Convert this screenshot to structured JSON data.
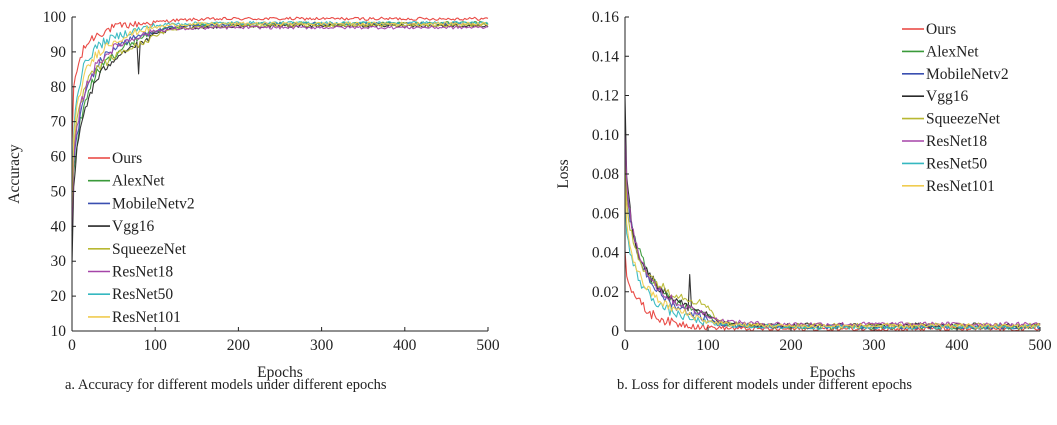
{
  "chart_data": [
    {
      "type": "line",
      "caption": "a. Accuracy for different models under different epochs",
      "xlabel": "Epochs",
      "ylabel": "Accuracy",
      "xlim": [
        0,
        500
      ],
      "ylim": [
        10,
        100
      ],
      "xticks": [
        "0",
        "100",
        "200",
        "300",
        "400",
        "500"
      ],
      "yticks": [
        "10",
        "20",
        "30",
        "40",
        "50",
        "60",
        "70",
        "80",
        "90",
        "100"
      ],
      "grid": false,
      "legend_position": "lower-left",
      "series": [
        {
          "name": "Ours",
          "color": "#e8413c",
          "x": [
            0,
            2,
            5,
            10,
            15,
            20,
            30,
            40,
            50,
            60,
            80,
            100,
            120,
            150,
            200,
            300,
            400,
            500
          ],
          "y": [
            62,
            80,
            84,
            88,
            91,
            93,
            95,
            96,
            97,
            97.5,
            98,
            98.5,
            99,
            99.3,
            99.5,
            99.5,
            99.5,
            99.5
          ]
        },
        {
          "name": "AlexNet",
          "color": "#3a9a3a",
          "x": [
            0,
            2,
            5,
            10,
            15,
            20,
            30,
            40,
            50,
            60,
            80,
            100,
            120,
            150,
            200,
            300,
            400,
            500
          ],
          "y": [
            38,
            55,
            62,
            70,
            75,
            79,
            84,
            87,
            89,
            91,
            94,
            96,
            97,
            97.8,
            98,
            98.2,
            98.2,
            98.3
          ]
        },
        {
          "name": "MobileNetv2",
          "color": "#3a4fb0",
          "x": [
            0,
            2,
            5,
            10,
            15,
            20,
            30,
            40,
            50,
            60,
            80,
            100,
            120,
            150,
            200,
            300,
            400,
            500
          ],
          "y": [
            40,
            57,
            64,
            72,
            77,
            81,
            86,
            89,
            91,
            92.5,
            94.5,
            96,
            97,
            97.5,
            97.8,
            98,
            98,
            98
          ]
        },
        {
          "name": "Vgg16",
          "color": "#2a2a2a",
          "x": [
            0,
            2,
            5,
            10,
            15,
            20,
            30,
            40,
            50,
            60,
            78,
            80,
            82,
            100,
            120,
            150,
            200,
            300,
            400,
            500
          ],
          "y": [
            28,
            50,
            60,
            68,
            73,
            77,
            82,
            85.5,
            88,
            90,
            92,
            84,
            92,
            95,
            96.5,
            97,
            97.3,
            97.5,
            97.5,
            97.5
          ]
        },
        {
          "name": "SqueezeNet",
          "color": "#b8b832",
          "x": [
            0,
            2,
            5,
            10,
            15,
            20,
            30,
            40,
            50,
            60,
            80,
            100,
            120,
            150,
            200,
            300,
            400,
            500
          ],
          "y": [
            42,
            60,
            68,
            75,
            79,
            82,
            85,
            87,
            88.5,
            90,
            92,
            94.5,
            96.5,
            97.2,
            97.5,
            97.6,
            97.6,
            97.6
          ]
        },
        {
          "name": "ResNet18",
          "color": "#a544a8",
          "x": [
            0,
            2,
            5,
            10,
            15,
            20,
            30,
            40,
            50,
            60,
            80,
            100,
            120,
            150,
            200,
            300,
            400,
            500
          ],
          "y": [
            40,
            58,
            66,
            74,
            78.5,
            82,
            86.5,
            89,
            91,
            92.5,
            94.5,
            96,
            96.5,
            96.8,
            97,
            97,
            97,
            97
          ]
        },
        {
          "name": "ResNet50",
          "color": "#35b8c0",
          "x": [
            0,
            2,
            5,
            10,
            15,
            20,
            30,
            40,
            50,
            60,
            80,
            100,
            120,
            150,
            200,
            300,
            400,
            500
          ],
          "y": [
            48,
            68,
            76,
            82,
            86,
            88.5,
            91.5,
            93,
            94,
            95,
            96.5,
            97.5,
            98,
            98.2,
            98.3,
            98.3,
            98.3,
            98.3
          ]
        },
        {
          "name": "ResNet101",
          "color": "#f0cc50",
          "x": [
            0,
            2,
            5,
            10,
            15,
            20,
            30,
            40,
            50,
            60,
            80,
            100,
            120,
            150,
            200,
            300,
            400,
            500
          ],
          "y": [
            45,
            64,
            72,
            79,
            83,
            86,
            89.5,
            91.5,
            93,
            94,
            96,
            97,
            97.7,
            98,
            98.1,
            98.1,
            98.1,
            98.1
          ]
        }
      ]
    },
    {
      "type": "line",
      "caption": "b. Loss for different models under different epochs",
      "xlabel": "Epochs",
      "ylabel": "Loss",
      "xlim": [
        0,
        500
      ],
      "ylim": [
        0,
        0.16
      ],
      "xticks": [
        "0",
        "100",
        "200",
        "300",
        "400",
        "500"
      ],
      "yticks": [
        "0",
        "0.02",
        "0.04",
        "0.06",
        "0.08",
        "0.10",
        "0.12",
        "0.14",
        "0.16"
      ],
      "grid": false,
      "legend_position": "top-right",
      "series": [
        {
          "name": "Ours",
          "color": "#e8413c",
          "x": [
            0,
            2,
            5,
            10,
            15,
            20,
            30,
            40,
            50,
            60,
            80,
            100,
            120,
            150,
            200,
            300,
            400,
            500
          ],
          "y": [
            0.04,
            0.03,
            0.025,
            0.02,
            0.016,
            0.013,
            0.009,
            0.007,
            0.005,
            0.004,
            0.003,
            0.002,
            0.0015,
            0.001,
            0.001,
            0.001,
            0.001,
            0.001
          ]
        },
        {
          "name": "AlexNet",
          "color": "#3a9a3a",
          "x": [
            0,
            2,
            5,
            10,
            15,
            20,
            30,
            40,
            50,
            60,
            80,
            100,
            110,
            120,
            150,
            200,
            300,
            400,
            500
          ],
          "y": [
            0.095,
            0.07,
            0.06,
            0.05,
            0.043,
            0.037,
            0.028,
            0.022,
            0.018,
            0.015,
            0.011,
            0.008,
            0.004,
            0.003,
            0.0025,
            0.002,
            0.002,
            0.002,
            0.002
          ]
        },
        {
          "name": "MobileNetv2",
          "color": "#3a4fb0",
          "x": [
            0,
            2,
            5,
            10,
            15,
            20,
            30,
            40,
            50,
            60,
            80,
            100,
            110,
            120,
            150,
            200,
            300,
            400,
            500
          ],
          "y": [
            0.1,
            0.072,
            0.06,
            0.048,
            0.04,
            0.034,
            0.026,
            0.02,
            0.016,
            0.013,
            0.009,
            0.006,
            0.004,
            0.003,
            0.0025,
            0.0022,
            0.002,
            0.002,
            0.002
          ]
        },
        {
          "name": "Vgg16",
          "color": "#2a2a2a",
          "x": [
            0,
            2,
            5,
            10,
            15,
            20,
            30,
            40,
            50,
            60,
            76,
            78,
            80,
            100,
            110,
            120,
            150,
            200,
            300,
            400,
            500
          ],
          "y": [
            0.12,
            0.08,
            0.065,
            0.05,
            0.042,
            0.036,
            0.028,
            0.023,
            0.019,
            0.016,
            0.012,
            0.03,
            0.012,
            0.008,
            0.005,
            0.004,
            0.003,
            0.003,
            0.003,
            0.003,
            0.003
          ]
        },
        {
          "name": "SqueezeNet",
          "color": "#b8b832",
          "x": [
            0,
            2,
            5,
            10,
            15,
            20,
            30,
            40,
            50,
            60,
            80,
            100,
            110,
            120,
            150,
            200,
            300,
            400,
            500
          ],
          "y": [
            0.09,
            0.065,
            0.055,
            0.045,
            0.039,
            0.034,
            0.028,
            0.024,
            0.021,
            0.019,
            0.016,
            0.013,
            0.006,
            0.004,
            0.003,
            0.003,
            0.003,
            0.003,
            0.003
          ]
        },
        {
          "name": "ResNet18",
          "color": "#a544a8",
          "x": [
            0,
            2,
            5,
            10,
            15,
            20,
            30,
            40,
            50,
            60,
            80,
            100,
            110,
            120,
            150,
            200,
            300,
            400,
            500
          ],
          "y": [
            0.1,
            0.074,
            0.062,
            0.05,
            0.042,
            0.036,
            0.028,
            0.022,
            0.018,
            0.015,
            0.011,
            0.008,
            0.006,
            0.005,
            0.004,
            0.0035,
            0.0035,
            0.0035,
            0.0035
          ]
        },
        {
          "name": "ResNet50",
          "color": "#35b8c0",
          "x": [
            0,
            2,
            5,
            10,
            15,
            20,
            30,
            40,
            50,
            60,
            80,
            100,
            120,
            150,
            200,
            300,
            400,
            500
          ],
          "y": [
            0.07,
            0.05,
            0.042,
            0.034,
            0.028,
            0.024,
            0.018,
            0.014,
            0.011,
            0.009,
            0.006,
            0.004,
            0.003,
            0.0025,
            0.002,
            0.002,
            0.002,
            0.002
          ]
        },
        {
          "name": "ResNet101",
          "color": "#f0cc50",
          "x": [
            0,
            2,
            5,
            10,
            15,
            20,
            30,
            40,
            50,
            60,
            80,
            100,
            120,
            150,
            200,
            300,
            400,
            500
          ],
          "y": [
            0.075,
            0.055,
            0.046,
            0.037,
            0.031,
            0.026,
            0.02,
            0.016,
            0.013,
            0.011,
            0.008,
            0.005,
            0.0035,
            0.003,
            0.0025,
            0.0025,
            0.0025,
            0.0025
          ]
        }
      ]
    }
  ]
}
